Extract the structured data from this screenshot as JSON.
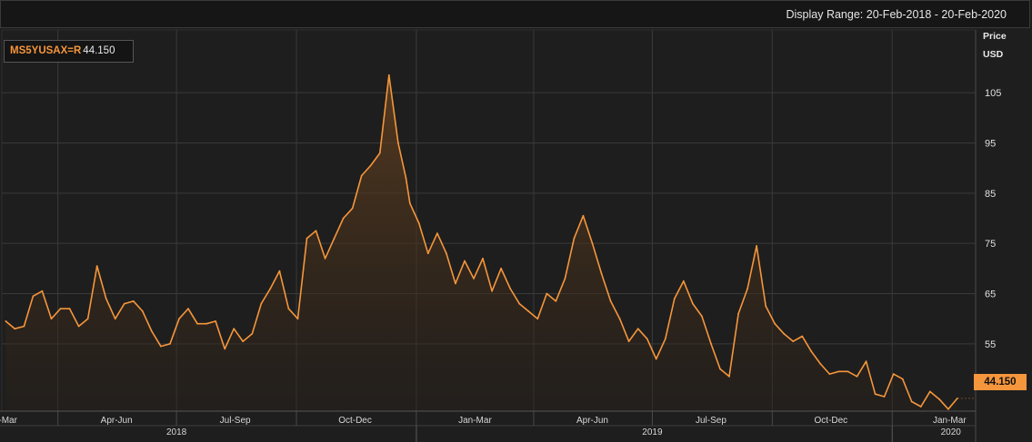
{
  "header": {
    "display_range": "Display Range: 20-Feb-2018 - 20-Feb-2020"
  },
  "legend": {
    "ric": "MS5YUSAX=R",
    "last_value": "44.150"
  },
  "axis": {
    "price_label": "Price",
    "unit_label": "USD"
  },
  "last_badge": "44.150",
  "colors": {
    "line": "#f5963c",
    "background": "#1e1e1e",
    "grid": "#3a3a3a"
  },
  "chart_data": {
    "type": "area",
    "series": [
      {
        "name": "MS5YUSAX=R",
        "x": [
          "2018-02-20",
          "2018-02-27",
          "2018-03-06",
          "2018-03-13",
          "2018-03-20",
          "2018-03-27",
          "2018-04-03",
          "2018-04-10",
          "2018-04-17",
          "2018-04-24",
          "2018-05-01",
          "2018-05-08",
          "2018-05-15",
          "2018-05-22",
          "2018-05-29",
          "2018-06-05",
          "2018-06-12",
          "2018-06-19",
          "2018-06-26",
          "2018-07-03",
          "2018-07-10",
          "2018-07-17",
          "2018-07-24",
          "2018-07-31",
          "2018-08-07",
          "2018-08-14",
          "2018-08-21",
          "2018-08-28",
          "2018-09-04",
          "2018-09-11",
          "2018-09-18",
          "2018-09-25",
          "2018-10-02",
          "2018-10-09",
          "2018-10-16",
          "2018-10-23",
          "2018-10-30",
          "2018-11-06",
          "2018-11-13",
          "2018-11-20",
          "2018-11-27",
          "2018-12-04",
          "2018-12-11",
          "2018-12-18",
          "2018-12-24",
          "2018-12-27",
          "2019-01-03",
          "2019-01-10",
          "2019-01-17",
          "2019-01-24",
          "2019-01-31",
          "2019-02-07",
          "2019-02-14",
          "2019-02-21",
          "2019-02-28",
          "2019-03-07",
          "2019-03-14",
          "2019-03-21",
          "2019-03-28",
          "2019-04-04",
          "2019-04-11",
          "2019-04-18",
          "2019-04-25",
          "2019-05-02",
          "2019-05-09",
          "2019-05-16",
          "2019-05-23",
          "2019-05-30",
          "2019-06-06",
          "2019-06-13",
          "2019-06-20",
          "2019-06-27",
          "2019-07-04",
          "2019-07-11",
          "2019-07-18",
          "2019-07-25",
          "2019-08-01",
          "2019-08-08",
          "2019-08-15",
          "2019-08-22",
          "2019-08-29",
          "2019-09-05",
          "2019-09-12",
          "2019-09-19",
          "2019-09-26",
          "2019-10-03",
          "2019-10-10",
          "2019-10-17",
          "2019-10-24",
          "2019-10-31",
          "2019-11-07",
          "2019-11-14",
          "2019-11-21",
          "2019-11-28",
          "2019-12-05",
          "2019-12-12",
          "2019-12-19",
          "2019-12-26",
          "2020-01-02",
          "2020-01-09",
          "2020-01-16",
          "2020-01-23",
          "2020-01-30",
          "2020-02-06",
          "2020-02-13",
          "2020-02-20"
        ],
        "values": [
          59.5,
          58.0,
          58.5,
          64.5,
          65.5,
          60.0,
          62.0,
          62.0,
          58.5,
          60.0,
          70.5,
          64.0,
          60.0,
          63.0,
          63.5,
          61.5,
          57.5,
          54.5,
          55.0,
          60.0,
          62.0,
          59.0,
          59.0,
          59.5,
          54.0,
          58.0,
          55.5,
          57.0,
          63.0,
          66.0,
          69.5,
          62.0,
          60.0,
          76.0,
          77.5,
          72.0,
          76.0,
          80.0,
          82.0,
          88.5,
          90.5,
          93.0,
          108.5,
          95.0,
          88.0,
          83.0,
          79.0,
          73.0,
          77.0,
          73.0,
          67.0,
          71.5,
          68.0,
          72.0,
          65.5,
          70.0,
          66.0,
          63.0,
          61.5,
          60.0,
          65.0,
          63.5,
          68.0,
          76.0,
          80.5,
          75.0,
          69.0,
          63.5,
          60.0,
          55.5,
          58.0,
          56.0,
          52.0,
          56.0,
          64.0,
          67.5,
          63.0,
          60.5,
          55.0,
          50.0,
          48.5,
          61.0,
          66.0,
          74.5,
          62.5,
          59.0,
          57.0,
          55.5,
          56.5,
          53.5,
          51.0,
          49.0,
          49.5,
          49.5,
          48.5,
          51.5,
          45.0,
          44.5,
          49.0,
          48.0,
          43.5,
          42.5,
          45.5,
          44.0,
          42.0,
          44.15
        ]
      }
    ],
    "xlabel": "",
    "ylabel": "Price USD",
    "yticks": [
      55,
      65,
      75,
      85,
      95,
      105
    ],
    "ylim": [
      41.6,
      117.5
    ],
    "xlim": [
      "2018-02-17",
      "2020-03-05"
    ],
    "quarter_labels": [
      {
        "label": "Jan-Mar",
        "date": "2018-02-16"
      },
      {
        "label": "Apr-Jun",
        "date": "2018-05-16"
      },
      {
        "label": "Jul-Sep",
        "date": "2018-08-15"
      },
      {
        "label": "Oct-Dec",
        "date": "2018-11-15"
      },
      {
        "label": "Jan-Mar",
        "date": "2019-02-15"
      },
      {
        "label": "Apr-Jun",
        "date": "2019-05-16"
      },
      {
        "label": "Jul-Sep",
        "date": "2019-08-15"
      },
      {
        "label": "Oct-Dec",
        "date": "2019-11-15"
      },
      {
        "label": "Jan-Mar",
        "date": "2020-02-14"
      }
    ],
    "year_labels": [
      {
        "label": "2018",
        "date": "2018-07-01"
      },
      {
        "label": "2019",
        "date": "2019-07-01"
      },
      {
        "label": "2020",
        "date": "2020-02-15"
      }
    ],
    "vgrid_dates": [
      "2018-04-01",
      "2018-07-01",
      "2018-10-01",
      "2019-01-01",
      "2019-04-01",
      "2019-07-01",
      "2019-10-01",
      "2020-01-01"
    ],
    "year_boundaries": [
      "2019-01-01",
      "2020-01-01"
    ],
    "grid": true,
    "legend_position": "top-left"
  }
}
